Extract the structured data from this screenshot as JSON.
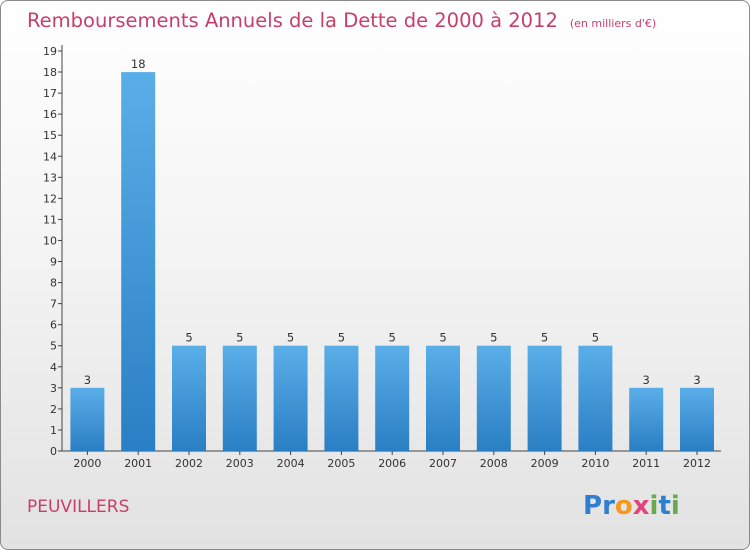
{
  "title": "Remboursements Annuels de la Dette de 2000 à 2012",
  "unit_note": "(en milliers d'€)",
  "commune": "PEUVILLERS",
  "logo": {
    "letters": [
      "P",
      "r",
      "o",
      "x",
      "i",
      "t",
      "i"
    ],
    "colors": [
      "#2f7fd0",
      "#2f7fd0",
      "#f39a1e",
      "#e0457b",
      "#6aa84f",
      "#2f7fd0",
      "#6aa84f"
    ]
  },
  "chart_data": {
    "type": "bar",
    "categories": [
      "2000",
      "2001",
      "2002",
      "2003",
      "2004",
      "2005",
      "2006",
      "2007",
      "2008",
      "2009",
      "2010",
      "2011",
      "2012"
    ],
    "values": [
      3,
      18,
      5,
      5,
      5,
      5,
      5,
      5,
      5,
      5,
      5,
      3,
      3
    ],
    "data_labels": [
      "3",
      "18",
      "5",
      "5",
      "5",
      "5",
      "5",
      "5",
      "5",
      "5",
      "5",
      "3",
      "3"
    ],
    "y_ticks": [
      "0",
      "1",
      "2",
      "3",
      "4",
      "5",
      "6",
      "7",
      "8",
      "9",
      "10",
      "11",
      "12",
      "13",
      "14",
      "15",
      "16",
      "17",
      "18",
      "19"
    ],
    "ylim": [
      0,
      19
    ],
    "grid": false,
    "bar_color": "#3a90d8"
  }
}
